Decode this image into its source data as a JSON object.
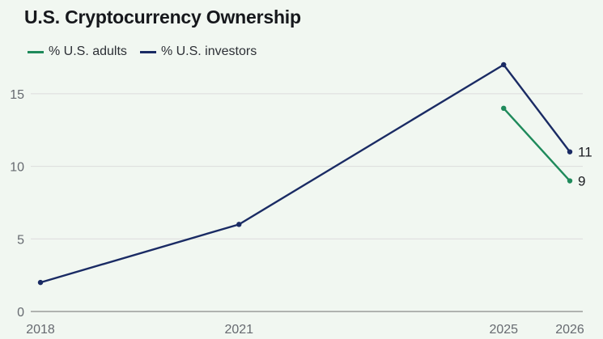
{
  "title": "U.S. Cryptocurrency Ownership",
  "colors": {
    "background": "#f1f7f1",
    "grid": "#dcdcdc",
    "axis": "#8a8a8a"
  },
  "chart_data": {
    "type": "line",
    "title": "U.S. Cryptocurrency Ownership",
    "xlabel": "",
    "ylabel": "",
    "x": [
      2018,
      2021,
      2025,
      2026
    ],
    "x_ticks": [
      "2018",
      "2021",
      "2025",
      "2026"
    ],
    "ylim": [
      0,
      17
    ],
    "y_ticks": [
      0,
      5,
      10,
      15
    ],
    "grid": true,
    "legend_position": "top-left",
    "series": [
      {
        "name": "% U.S. adults",
        "color": "#1f8a5b",
        "points": [
          {
            "x": 2025,
            "y": 14
          },
          {
            "x": 2026,
            "y": 9
          }
        ],
        "end_label": "9"
      },
      {
        "name": "% U.S. investors",
        "color": "#1a2b64",
        "points": [
          {
            "x": 2018,
            "y": 2
          },
          {
            "x": 2021,
            "y": 6
          },
          {
            "x": 2025,
            "y": 17
          },
          {
            "x": 2026,
            "y": 11
          }
        ],
        "end_label": "11"
      }
    ]
  }
}
